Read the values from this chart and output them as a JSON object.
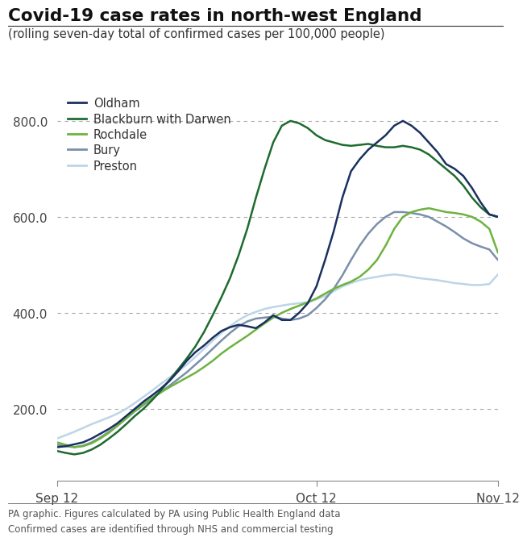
{
  "title": "Covid-19 case rates in north-west England",
  "subtitle": "(rolling seven-day total of confirmed cases per 100,000 people)",
  "footer_line1": "PA graphic. Figures calculated by PA using Public Health England data",
  "footer_line2": "Confirmed cases are identified through NHS and commercial testing",
  "xtick_labels": [
    "Sep 12",
    "Oct 12",
    "Nov 12"
  ],
  "ytick_values": [
    200.0,
    400.0,
    600.0,
    800.0
  ],
  "ylim": [
    50,
    870
  ],
  "colors": {
    "Oldham": "#1a3060",
    "Blackburn with Darwen": "#1d6b2e",
    "Rochdale": "#6db33f",
    "Bury": "#7a8faa",
    "Preston": "#bdd5e8"
  },
  "series": {
    "Oldham": [
      120,
      122,
      126,
      130,
      138,
      148,
      158,
      170,
      185,
      200,
      215,
      228,
      242,
      258,
      278,
      300,
      318,
      332,
      348,
      362,
      370,
      375,
      372,
      368,
      380,
      395,
      385,
      385,
      400,
      420,
      455,
      510,
      570,
      640,
      695,
      720,
      740,
      755,
      770,
      790,
      800,
      790,
      775,
      755,
      735,
      710,
      700,
      685,
      660,
      630,
      605,
      600
    ],
    "Blackburn with Darwen": [
      112,
      108,
      105,
      108,
      115,
      125,
      138,
      152,
      168,
      185,
      200,
      218,
      238,
      260,
      282,
      305,
      330,
      360,
      395,
      432,
      472,
      520,
      575,
      640,
      700,
      755,
      790,
      800,
      795,
      785,
      770,
      760,
      755,
      750,
      748,
      750,
      752,
      748,
      745,
      745,
      748,
      745,
      740,
      730,
      715,
      700,
      685,
      665,
      640,
      620,
      605,
      600
    ],
    "Rochdale": [
      130,
      125,
      120,
      122,
      128,
      138,
      150,
      165,
      180,
      196,
      210,
      222,
      234,
      245,
      255,
      265,
      275,
      287,
      300,
      315,
      328,
      340,
      352,
      365,
      378,
      390,
      400,
      408,
      415,
      422,
      430,
      440,
      450,
      458,
      465,
      475,
      490,
      510,
      540,
      575,
      600,
      610,
      615,
      618,
      614,
      610,
      608,
      605,
      600,
      590,
      575,
      525
    ],
    "Bury": [
      125,
      122,
      120,
      123,
      130,
      140,
      152,
      165,
      180,
      195,
      208,
      222,
      235,
      248,
      262,
      276,
      292,
      308,
      325,
      342,
      358,
      372,
      382,
      388,
      390,
      392,
      388,
      385,
      388,
      395,
      410,
      428,
      450,
      478,
      510,
      540,
      565,
      585,
      600,
      610,
      610,
      608,
      605,
      600,
      590,
      580,
      568,
      555,
      545,
      538,
      532,
      510
    ],
    "Preston": [
      138,
      145,
      152,
      160,
      168,
      175,
      182,
      190,
      200,
      212,
      225,
      238,
      252,
      265,
      278,
      292,
      308,
      325,
      342,
      358,
      372,
      385,
      395,
      402,
      408,
      412,
      415,
      418,
      420,
      422,
      428,
      435,
      445,
      455,
      462,
      468,
      472,
      475,
      478,
      480,
      478,
      475,
      472,
      470,
      468,
      465,
      462,
      460,
      458,
      458,
      460,
      480
    ]
  }
}
